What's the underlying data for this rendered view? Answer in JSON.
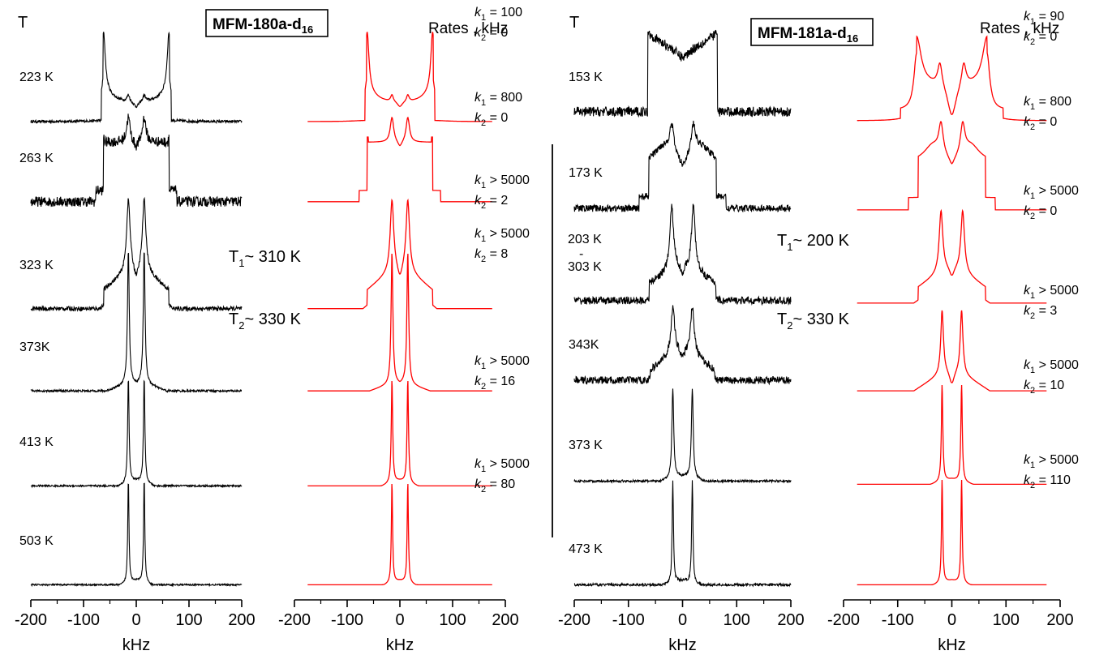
{
  "chart_data": [
    {
      "type": "line",
      "panel": "experimental",
      "sample": "MFM-180a-d16",
      "color": "#000000",
      "temperature_header": "T",
      "xlabel": "kHz",
      "xlim": [
        -200,
        200
      ],
      "xticks": [
        "-200",
        "-100",
        "0",
        "100",
        "200"
      ],
      "transitions": [
        {
          "symbol": "T",
          "sub": "1",
          "text": "~ 310 K"
        },
        {
          "symbol": "T",
          "sub": "2",
          "text": "~ 330 K"
        }
      ],
      "spectra": [
        {
          "temperature": "223 K",
          "shape": "pake",
          "edge_khz": 64,
          "inner_khz": 15,
          "noise": 0.015
        },
        {
          "temperature": "263 K",
          "shape": "plateau",
          "edge_khz": 62,
          "inner_khz": 15,
          "noise": 0.06
        },
        {
          "temperature": "323 K",
          "shape": "mixed",
          "edge_khz": 62,
          "inner_khz": 15,
          "noise": 0.02
        },
        {
          "temperature": "373K",
          "shape": "narrow",
          "edge_khz": 60,
          "inner_khz": 15,
          "noise": 0.008
        },
        {
          "temperature": "413 K",
          "shape": "narrow2",
          "edge_khz": 35,
          "inner_khz": 15,
          "noise": 0.008
        },
        {
          "temperature": "503 K",
          "shape": "narrow3",
          "edge_khz": 30,
          "inner_khz": 15,
          "noise": 0.008
        }
      ]
    },
    {
      "type": "line",
      "panel": "simulated",
      "sample": "MFM-180a-d16",
      "color": "#ff0000",
      "rates_header": "Rates , kHz",
      "xlabel": "kHz",
      "xlim": [
        -200,
        200
      ],
      "xticks": [
        "-200",
        "-100",
        "0",
        "100",
        "200"
      ],
      "spectra": [
        {
          "k1": "= 100",
          "k2": "= 0",
          "shape": "pake",
          "edge_khz": 64,
          "inner_khz": 15
        },
        {
          "k1": "= 800",
          "k2": "= 0",
          "shape": "plateau",
          "edge_khz": 62,
          "inner_khz": 15
        },
        {
          "k1": "> 5000",
          "k2": "= 2",
          "shape": "mixed",
          "edge_khz": 62,
          "inner_khz": 15
        },
        {
          "k1": "> 5000",
          "k2": "= 8",
          "shape": "narrow",
          "edge_khz": 60,
          "inner_khz": 15
        },
        {
          "k1": "> 5000",
          "k2": "= 16",
          "shape": "narrow2",
          "edge_khz": 35,
          "inner_khz": 15
        },
        {
          "k1": "> 5000",
          "k2": "= 80",
          "shape": "narrow3",
          "edge_khz": 30,
          "inner_khz": 15
        }
      ]
    },
    {
      "type": "line",
      "panel": "experimental",
      "sample": "MFM-181a-d16",
      "color": "#000000",
      "temperature_header": "T",
      "xlabel": "kHz",
      "xlim": [
        -200,
        200
      ],
      "xticks": [
        "-200",
        "-100",
        "0",
        "100",
        "200"
      ],
      "transitions": [
        {
          "symbol": "T",
          "sub": "1",
          "text": "~ 200 K"
        },
        {
          "symbol": "T",
          "sub": "2",
          "text": "~ 330 K"
        }
      ],
      "range_label": {
        "from": "203 K",
        "dash": "-",
        "to": "303 K"
      },
      "spectra": [
        {
          "temperature": "153 K",
          "shape": "box",
          "edge_khz": 62,
          "inner_khz": 15,
          "noise": 0.06
        },
        {
          "temperature": "173 K",
          "shape": "plateau2",
          "edge_khz": 62,
          "inner_khz": 20,
          "noise": 0.04
        },
        {
          "temperature": "",
          "shape": "mixed",
          "edge_khz": 62,
          "inner_khz": 20,
          "noise": 0.04
        },
        {
          "temperature": "343K",
          "shape": "mixed2",
          "edge_khz": 60,
          "inner_khz": 18,
          "noise": 0.05
        },
        {
          "temperature": "373 K",
          "shape": "narrow",
          "edge_khz": 40,
          "inner_khz": 18,
          "noise": 0.012
        },
        {
          "temperature": "473 K",
          "shape": "narrow3",
          "edge_khz": 35,
          "inner_khz": 18,
          "noise": 0.012
        }
      ]
    },
    {
      "type": "line",
      "panel": "simulated",
      "sample": "MFM-181a-d16",
      "color": "#ff0000",
      "rates_header": "Rates , kHz",
      "xlabel": "kHz",
      "xlim": [
        -200,
        200
      ],
      "xticks": [
        "-200",
        "-100",
        "0",
        "100",
        "200"
      ],
      "spectra": [
        {
          "k1": "= 90",
          "k2": "= 0",
          "shape": "wide",
          "edge_khz": 65,
          "inner_khz": 22
        },
        {
          "k1": "= 800",
          "k2": "= 0",
          "shape": "plateau2",
          "edge_khz": 62,
          "inner_khz": 20
        },
        {
          "k1": "> 5000",
          "k2": "= 0",
          "shape": "mixed",
          "edge_khz": 62,
          "inner_khz": 20
        },
        {
          "k1": "> 5000",
          "k2": "= 3",
          "shape": "mixed3",
          "edge_khz": 60,
          "inner_khz": 18
        },
        {
          "k1": "> 5000",
          "k2": "= 10",
          "shape": "narrow2",
          "edge_khz": 40,
          "inner_khz": 18
        },
        {
          "k1": "> 5000",
          "k2": "= 110",
          "shape": "narrow3",
          "edge_khz": 35,
          "inner_khz": 18
        }
      ]
    }
  ]
}
